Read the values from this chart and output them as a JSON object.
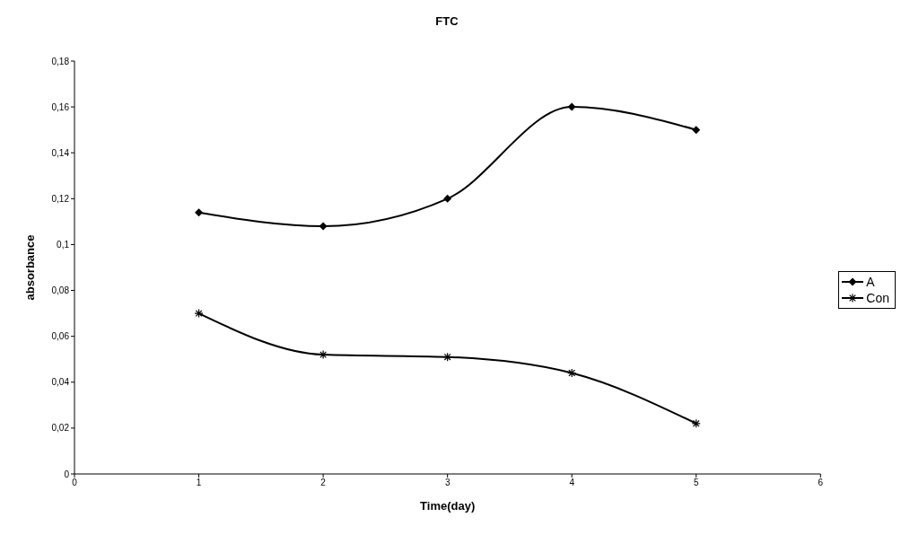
{
  "chart_data": {
    "type": "line",
    "title": "FTC",
    "xlabel": "Time(day)",
    "ylabel": "absorbance",
    "x": [
      1,
      2,
      3,
      4,
      5
    ],
    "series": [
      {
        "name": "A",
        "color": "#000000",
        "values": [
          0.114,
          0.108,
          0.12,
          0.16,
          0.15
        ],
        "marker": "diamond"
      },
      {
        "name": "Con",
        "color": "#000000",
        "values": [
          0.07,
          0.052,
          0.051,
          0.044,
          0.022
        ],
        "marker": "cross"
      }
    ],
    "xlim": [
      0,
      6
    ],
    "xticks": [
      0,
      1,
      2,
      3,
      4,
      5,
      6
    ],
    "ylim": [
      0,
      0.18
    ],
    "yticks": [
      0,
      {
        "value": 0.02,
        "label": "0,02"
      },
      {
        "value": 0.04,
        "label": "0,04"
      },
      {
        "value": 0.06,
        "label": "0,06"
      },
      {
        "value": 0.08,
        "label": "0,08"
      },
      {
        "value": 0.1,
        "label": "0,1"
      },
      {
        "value": 0.12,
        "label": "0,12"
      },
      {
        "value": 0.14,
        "label": "0,14"
      },
      {
        "value": 0.16,
        "label": "0,16"
      },
      {
        "value": 0.18,
        "label": "0,18"
      }
    ],
    "grid": false,
    "legend": "right",
    "line_style": "solid"
  }
}
